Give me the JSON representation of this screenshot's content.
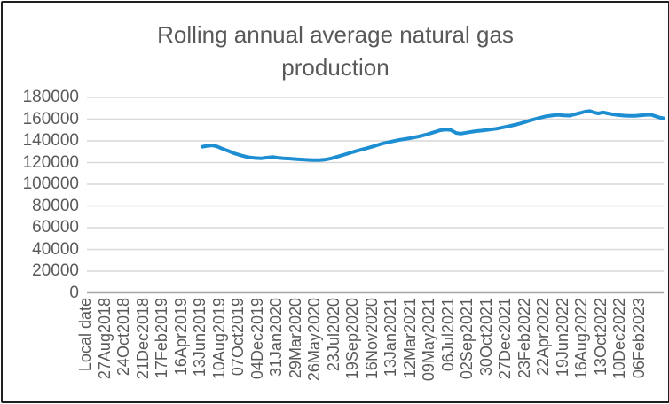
{
  "window": {
    "background": "#ffffff",
    "border_color": "#1f1f1f"
  },
  "chart_data": {
    "type": "line",
    "title": "Rolling annual average natural gas production",
    "xlabel": "",
    "ylabel": "",
    "ylim": [
      0,
      180000
    ],
    "yticks": [
      180000,
      160000,
      140000,
      120000,
      100000,
      80000,
      60000,
      40000,
      20000,
      0
    ],
    "grid": "horizontal",
    "legend": "none",
    "categories": [
      "Local date",
      "27Aug2018",
      "24Oct2018",
      "21Dec2018",
      "17Feb2019",
      "16Apr2019",
      "13Jun2019",
      "10Aug2019",
      "07Oct2019",
      "04Dec2019",
      "31Jan2020",
      "29Mar2020",
      "26May2020",
      "23Jul2020",
      "19Sep2020",
      "16Nov2020",
      "13Jan2021",
      "12Mar2021",
      "09May2021",
      "06Jul2021",
      "02Sep2021",
      "30Oct2021",
      "27Dec2021",
      "23Feb2022",
      "22Apr2022",
      "19Jun2022",
      "16Aug2022",
      "13Oct2022",
      "10Dec2022",
      "06Feb2023"
    ],
    "series": [
      {
        "name": "",
        "color": "#1e8ed2",
        "points_format": "[category slot index, production value]",
        "points": [
          [
            6.15,
            134600
          ],
          [
            6.4,
            135400
          ],
          [
            6.65,
            135800
          ],
          [
            6.9,
            134900
          ],
          [
            7.15,
            133100
          ],
          [
            7.5,
            130700
          ],
          [
            7.8,
            128600
          ],
          [
            8.15,
            126700
          ],
          [
            8.5,
            125100
          ],
          [
            8.9,
            124200
          ],
          [
            9.25,
            123900
          ],
          [
            9.55,
            124600
          ],
          [
            9.85,
            125100
          ],
          [
            10.1,
            124400
          ],
          [
            10.4,
            123800
          ],
          [
            10.75,
            123600
          ],
          [
            11.1,
            123100
          ],
          [
            11.5,
            122600
          ],
          [
            11.9,
            122300
          ],
          [
            12.25,
            122200
          ],
          [
            12.55,
            122600
          ],
          [
            12.9,
            123800
          ],
          [
            13.3,
            125800
          ],
          [
            13.75,
            128200
          ],
          [
            14.2,
            130500
          ],
          [
            14.7,
            132900
          ],
          [
            15.15,
            135200
          ],
          [
            15.6,
            137600
          ],
          [
            16.1,
            139500
          ],
          [
            16.5,
            141000
          ],
          [
            17.0,
            142400
          ],
          [
            17.45,
            143900
          ],
          [
            17.85,
            145600
          ],
          [
            18.2,
            147500
          ],
          [
            18.6,
            149700
          ],
          [
            18.85,
            150400
          ],
          [
            19.15,
            150100
          ],
          [
            19.45,
            147300
          ],
          [
            19.7,
            146700
          ],
          [
            20.0,
            147600
          ],
          [
            20.3,
            148500
          ],
          [
            20.45,
            148900
          ],
          [
            20.8,
            149500
          ],
          [
            21.2,
            150400
          ],
          [
            21.55,
            151200
          ],
          [
            21.9,
            152400
          ],
          [
            22.3,
            153900
          ],
          [
            22.7,
            155500
          ],
          [
            23.05,
            157300
          ],
          [
            23.4,
            159300
          ],
          [
            23.8,
            161100
          ],
          [
            24.15,
            162600
          ],
          [
            24.55,
            163600
          ],
          [
            24.8,
            164000
          ],
          [
            25.1,
            163500
          ],
          [
            25.4,
            163300
          ],
          [
            25.65,
            164400
          ],
          [
            25.95,
            165700
          ],
          [
            26.2,
            166900
          ],
          [
            26.45,
            167500
          ],
          [
            26.7,
            166000
          ],
          [
            26.9,
            165300
          ],
          [
            27.15,
            166300
          ],
          [
            27.4,
            165300
          ],
          [
            27.7,
            164300
          ],
          [
            28.0,
            163700
          ],
          [
            28.25,
            163300
          ],
          [
            28.55,
            163000
          ],
          [
            28.8,
            163100
          ],
          [
            29.1,
            163500
          ],
          [
            29.35,
            163900
          ],
          [
            29.65,
            164200
          ],
          [
            29.9,
            162700
          ],
          [
            30.15,
            161300
          ],
          [
            30.3,
            161000
          ]
        ]
      }
    ],
    "colors": {
      "text": "#595959",
      "gridline": "#d9d9d9",
      "axis_line": "#a6a6a6",
      "line": "#1e8ed2"
    }
  }
}
